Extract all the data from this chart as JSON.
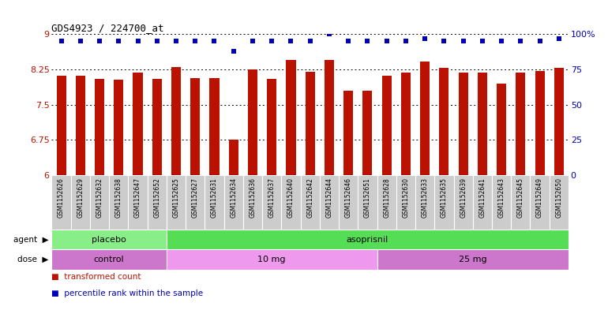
{
  "title": "GDS4923 / 224700_at",
  "samples": [
    "GSM1152626",
    "GSM1152629",
    "GSM1152632",
    "GSM1152638",
    "GSM1152647",
    "GSM1152652",
    "GSM1152625",
    "GSM1152627",
    "GSM1152631",
    "GSM1152634",
    "GSM1152636",
    "GSM1152637",
    "GSM1152640",
    "GSM1152642",
    "GSM1152644",
    "GSM1152646",
    "GSM1152651",
    "GSM1152628",
    "GSM1152630",
    "GSM1152633",
    "GSM1152635",
    "GSM1152639",
    "GSM1152641",
    "GSM1152643",
    "GSM1152645",
    "GSM1152649",
    "GSM1152650"
  ],
  "bar_values": [
    8.12,
    8.12,
    8.05,
    8.03,
    8.18,
    8.05,
    8.3,
    8.07,
    8.07,
    6.75,
    8.25,
    8.05,
    8.45,
    8.2,
    8.45,
    7.8,
    7.8,
    8.12,
    8.18,
    8.42,
    8.28,
    8.18,
    8.18,
    7.95,
    8.18,
    8.22,
    8.28
  ],
  "percentile_values": [
    95,
    95,
    95,
    95,
    95,
    95,
    95,
    95,
    95,
    88,
    95,
    95,
    95,
    95,
    100,
    95,
    95,
    95,
    95,
    97,
    95,
    95,
    95,
    95,
    95,
    95,
    97
  ],
  "agent_groups": [
    {
      "label": "placebo",
      "start": 0,
      "end": 6,
      "color": "#88EE88"
    },
    {
      "label": "asoprisnil",
      "start": 6,
      "end": 27,
      "color": "#55DD55"
    }
  ],
  "dose_groups": [
    {
      "label": "control",
      "start": 0,
      "end": 6,
      "color": "#CC77CC"
    },
    {
      "label": "10 mg",
      "start": 6,
      "end": 17,
      "color": "#EE99EE"
    },
    {
      "label": "25 mg",
      "start": 17,
      "end": 27,
      "color": "#CC77CC"
    }
  ],
  "ylim": [
    6.0,
    9.0
  ],
  "yticks_left": [
    6.0,
    6.75,
    7.5,
    8.25,
    9.0
  ],
  "ytick_labels_left": [
    "6",
    "6.75",
    "7.5",
    "8.25",
    "9"
  ],
  "yticks_right_pct": [
    0,
    25,
    50,
    75,
    100
  ],
  "bar_color": "#BB1100",
  "dot_color": "#0000BB",
  "xtick_bg": "#CCCCCC",
  "xtick_border": "#999999"
}
